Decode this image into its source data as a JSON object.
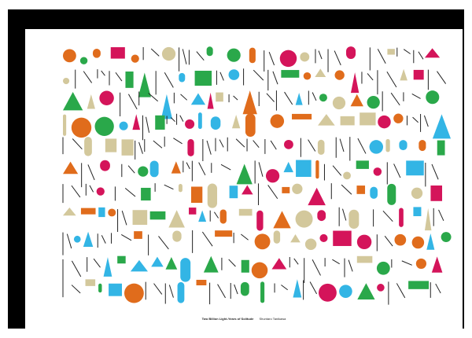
{
  "poster": {
    "title": "Two Billion Light-Years of Solitude",
    "author": "Shuntaro Tanikawa"
  },
  "palette": [
    "#d4145a",
    "#e06c1c",
    "#2aa84a",
    "#33b5e5",
    "#d3c89c",
    "#222222"
  ],
  "frame_color": "#000000"
}
